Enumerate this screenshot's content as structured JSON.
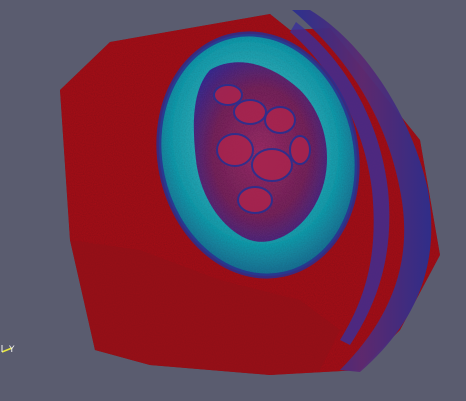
{
  "viewport": {
    "background": "#5a5c6f",
    "colors": {
      "tissue_red": "#a8141a",
      "tissue_dark_red": "#7a0f18",
      "membrane_cyan": "#19a3b4",
      "membrane_light": "#5fd0d6",
      "edge_blue": "#2a2f8f",
      "embryo_purple": "#6a2a70"
    }
  },
  "orientation_axes": {
    "y_label": "Y"
  }
}
